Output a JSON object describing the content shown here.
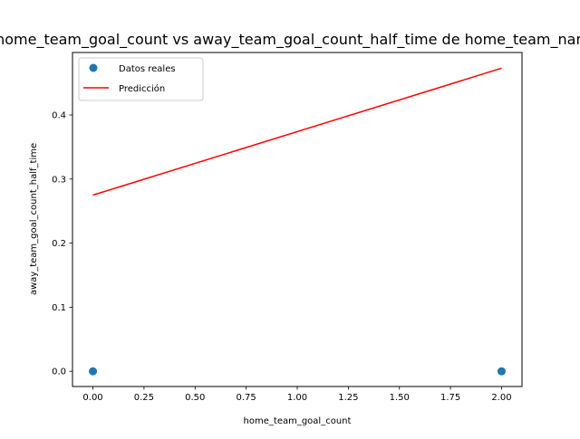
{
  "chart_data": {
    "type": "scatter",
    "title": "home_team_goal_count vs away_team_goal_count_half_time de home_team_name",
    "xlabel": "home_team_goal_count",
    "ylabel": "away_team_goal_count_half_time",
    "xlim": [
      -0.1,
      2.1
    ],
    "ylim": [
      -0.0237,
      0.4975
    ],
    "x_ticks": [
      0.0,
      0.25,
      0.5,
      0.75,
      1.0,
      1.25,
      1.5,
      1.75,
      2.0
    ],
    "x_tick_labels": [
      "0.00",
      "0.25",
      "0.50",
      "0.75",
      "1.00",
      "1.25",
      "1.50",
      "1.75",
      "2.00"
    ],
    "y_ticks": [
      0.0,
      0.1,
      0.2,
      0.3,
      0.4
    ],
    "y_tick_labels": [
      "0.0",
      "0.1",
      "0.2",
      "0.3",
      "0.4"
    ],
    "grid": false,
    "legend_position": "top-left",
    "series": [
      {
        "name": "Datos reales",
        "kind": "scatter",
        "color": "#1f77b4",
        "points": [
          {
            "x": 0.0,
            "y": 0.0
          },
          {
            "x": 2.0,
            "y": 0.0
          }
        ]
      },
      {
        "name": "Predicción",
        "kind": "line",
        "color": "#ff0000",
        "points": [
          {
            "x": 0.0,
            "y": 0.275
          },
          {
            "x": 2.0,
            "y": 0.473
          }
        ]
      }
    ]
  }
}
